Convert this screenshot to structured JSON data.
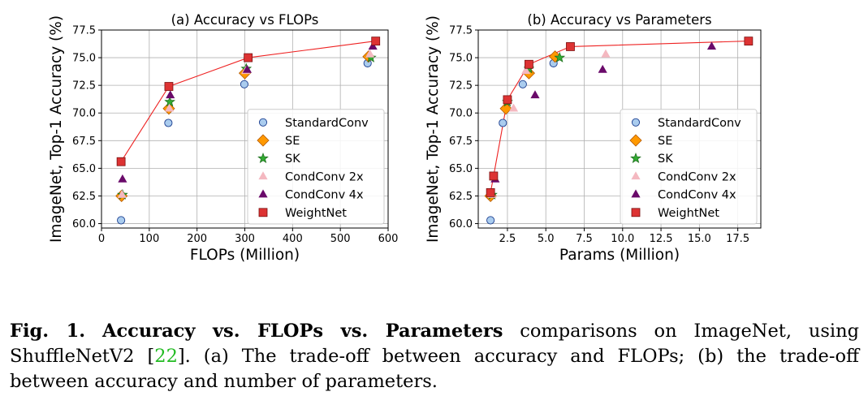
{
  "chart_data": [
    {
      "type": "scatter",
      "title": "(a) Accuracy vs FLOPs",
      "xlabel": "FLOPs (Million)",
      "ylabel": "ImageNet, Top-1 Accuracy (%)",
      "xlim": [
        0,
        600
      ],
      "ylim": [
        59.6,
        77.5
      ],
      "xticks": [
        0,
        100,
        200,
        300,
        400,
        500,
        600
      ],
      "xtick_labels": [
        "0",
        "100",
        "200",
        "300",
        "400",
        "500",
        "600"
      ],
      "yticks": [
        60.0,
        62.5,
        65.0,
        67.5,
        70.0,
        72.5,
        75.0,
        77.5
      ],
      "ytick_labels": [
        "60.0",
        "62.5",
        "65.0",
        "67.5",
        "70.0",
        "72.5",
        "75.0",
        "77.5"
      ],
      "grid": true,
      "legend_position": "center-right",
      "series": [
        {
          "name": "StandardConv",
          "marker": "circle",
          "x": [
            41,
            140,
            299,
            557
          ],
          "y": [
            60.3,
            69.1,
            72.6,
            74.5
          ]
        },
        {
          "name": "SE",
          "marker": "diamond",
          "x": [
            42,
            141,
            300,
            559
          ],
          "y": [
            62.5,
            70.4,
            73.6,
            75.1
          ]
        },
        {
          "name": "SK",
          "marker": "star",
          "x": [
            44,
            143,
            303,
            564
          ],
          "y": [
            62.6,
            71.0,
            74.0,
            75.0
          ]
        },
        {
          "name": "CondConv 2x",
          "marker": "triangle",
          "x": [
            43,
            142,
            302,
            562
          ],
          "y": [
            62.6,
            70.4,
            73.8,
            75.3
          ]
        },
        {
          "name": "CondConv 4x",
          "marker": "triangle",
          "x": [
            44,
            144,
            305,
            568
          ],
          "y": [
            64.0,
            71.6,
            73.9,
            76.0
          ]
        },
        {
          "name": "WeightNet",
          "marker": "square",
          "line": true,
          "x": [
            41,
            141,
            307,
            574
          ],
          "y": [
            65.6,
            72.4,
            75.0,
            76.5
          ]
        }
      ]
    },
    {
      "type": "scatter",
      "title": "(b) Accuracy vs Parameters",
      "xlabel": "Params (Million)",
      "ylabel": "ImageNet, Top-1 Accuracy (%)",
      "xlim": [
        0.6,
        19.0
      ],
      "ylim": [
        59.6,
        77.5
      ],
      "xticks": [
        2.5,
        5.0,
        7.5,
        10.0,
        12.5,
        15.0,
        17.5
      ],
      "xtick_labels": [
        "2.5",
        "5.0",
        "7.5",
        "10.0",
        "12.5",
        "15.0",
        "17.5"
      ],
      "yticks": [
        60.0,
        62.5,
        65.0,
        67.5,
        70.0,
        72.5,
        75.0,
        77.5
      ],
      "ytick_labels": [
        "60.0",
        "62.5",
        "65.0",
        "67.5",
        "70.0",
        "72.5",
        "75.0",
        "77.5"
      ],
      "grid": true,
      "legend_position": "center-right",
      "series": [
        {
          "name": "StandardConv",
          "marker": "circle",
          "x": [
            1.4,
            2.2,
            3.5,
            5.5
          ],
          "y": [
            60.3,
            69.1,
            72.6,
            74.5
          ]
        },
        {
          "name": "SE",
          "marker": "diamond",
          "x": [
            1.4,
            2.4,
            3.9,
            5.6
          ],
          "y": [
            62.5,
            70.4,
            73.6,
            75.1
          ]
        },
        {
          "name": "SK",
          "marker": "star",
          "x": [
            1.5,
            2.5,
            3.9,
            5.9
          ],
          "y": [
            62.6,
            71.0,
            74.0,
            75.0
          ]
        },
        {
          "name": "CondConv 2x",
          "marker": "triangle",
          "x": [
            1.5,
            2.9,
            3.7,
            8.9
          ],
          "y": [
            62.6,
            70.4,
            73.8,
            75.3
          ]
        },
        {
          "name": "CondConv 4x",
          "marker": "triangle",
          "x": [
            1.7,
            4.3,
            8.7,
            15.8
          ],
          "y": [
            64.0,
            71.6,
            73.9,
            76.0
          ]
        },
        {
          "name": "WeightNet",
          "marker": "square",
          "line": true,
          "x": [
            1.4,
            1.6,
            2.5,
            3.9,
            6.6,
            18.2
          ],
          "y": [
            62.8,
            64.3,
            71.2,
            74.4,
            76.0,
            76.5
          ]
        }
      ]
    }
  ],
  "series_colors": {
    "StandardConv": "#aaccee",
    "SE": "#ff9900",
    "SK": "#33aa33",
    "CondConv 2x": "#f4b8c0",
    "CondConv 4x": "#6a0a6a",
    "WeightNet": "#dd3333"
  },
  "line_color": "#ee2222",
  "caption": {
    "label": "Fig. 1.",
    "bold_text": "Accuracy vs. FLOPs vs. Parameters",
    "text_1": " comparisons on ImageNet, using ShuffleNetV2 [",
    "ref": "22",
    "text_2": "]. (a) The trade-off between accuracy and FLOPs; (b) the trade-off between accuracy and number of parameters."
  }
}
